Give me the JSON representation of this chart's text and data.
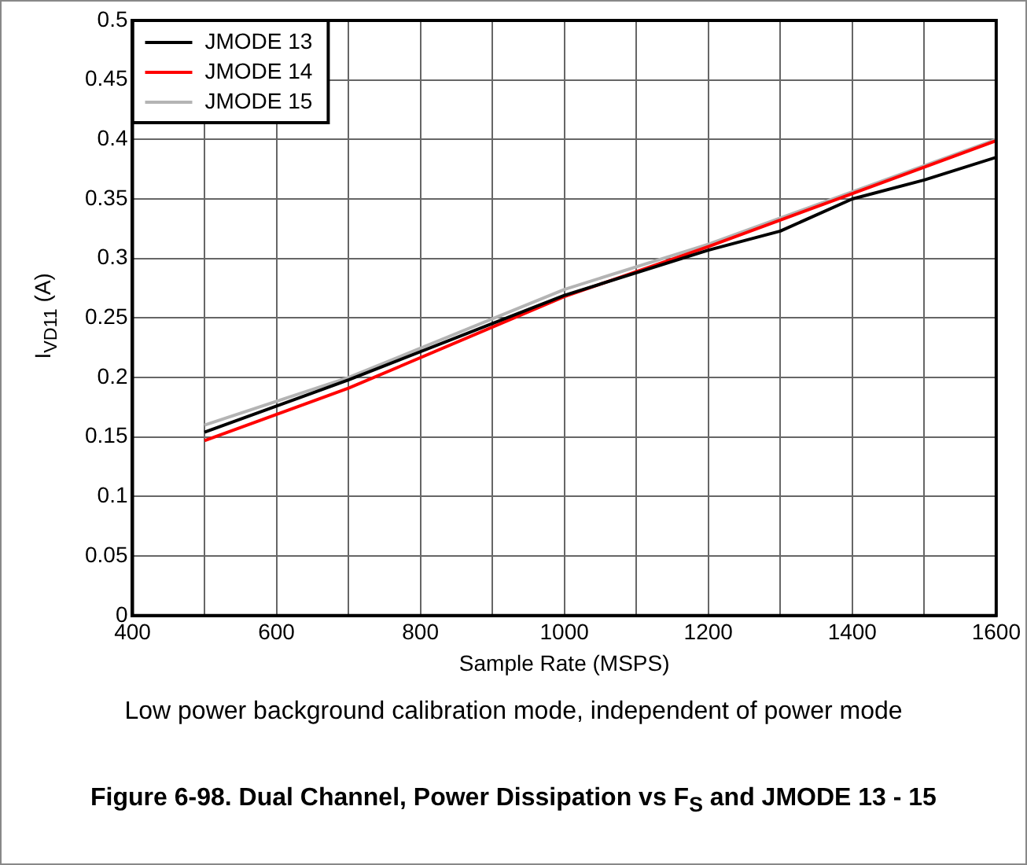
{
  "chart_data": {
    "type": "line",
    "title": "Figure 6-98. Dual Channel, Power Dissipation vs F$_{S}$ and JMODE 13 - 15",
    "xlabel": "Sample Rate (MSPS)",
    "ylabel": "I$_{VD11}$ (A)",
    "annotations": [
      "Low power background calibration mode, independent of power mode"
    ],
    "xlim": [
      400,
      1600
    ],
    "xticks": [
      400,
      {
        "value": 500,
        "label": null
      },
      600,
      {
        "value": 700,
        "label": null
      },
      800,
      {
        "value": 900,
        "label": null
      },
      1000,
      {
        "value": 1100,
        "label": null
      },
      1200,
      {
        "value": 1300,
        "label": null
      },
      1400,
      {
        "value": 1500,
        "label": null
      },
      1600
    ],
    "ylim": [
      0,
      0.5
    ],
    "yticks": [
      0,
      0.05,
      0.1,
      0.15,
      0.2,
      0.25,
      0.3,
      0.35,
      0.4,
      0.45,
      0.5
    ],
    "grid": true,
    "legend": "top left",
    "marker": "none",
    "line_style": "solid",
    "series": [
      {
        "name": "JMODE 13",
        "color": "#000000",
        "x": [
          500,
          700,
          1000,
          1200,
          1300,
          1400,
          1500,
          1600
        ],
        "values": [
          0.154,
          0.198,
          0.269,
          0.307,
          0.323,
          0.35,
          0.366,
          0.385
        ]
      },
      {
        "name": "JMODE 14",
        "color": "#ff0000",
        "x": [
          500,
          700,
          1000,
          1200,
          1600
        ],
        "values": [
          0.147,
          0.191,
          0.268,
          0.31,
          0.399
        ]
      },
      {
        "name": "JMODE 15",
        "color": "#b4b4b4",
        "x": [
          500,
          700,
          1000,
          1200,
          1600
        ],
        "values": [
          0.16,
          0.2,
          0.274,
          0.312,
          0.4
        ]
      }
    ]
  }
}
